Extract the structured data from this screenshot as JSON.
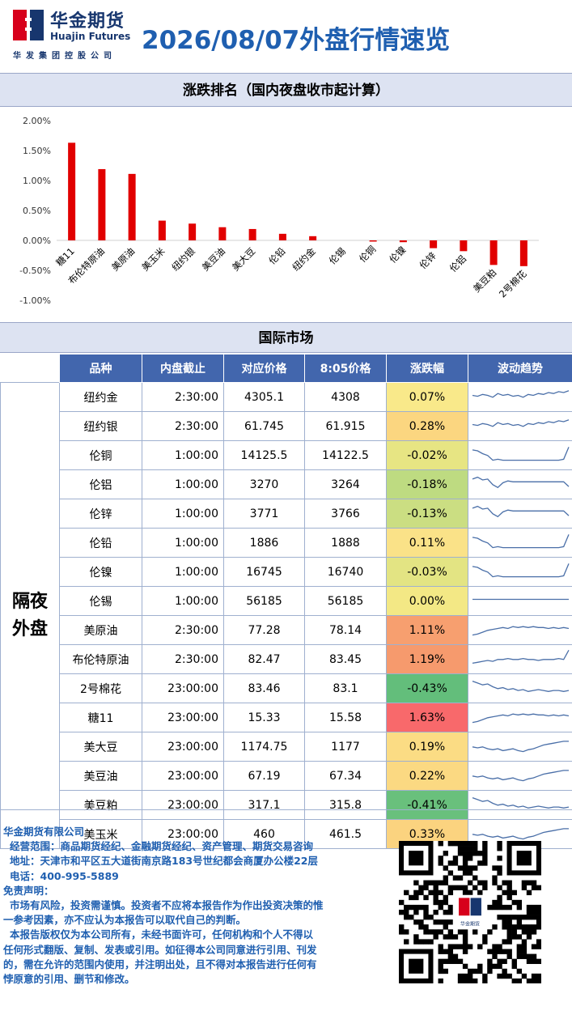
{
  "header": {
    "logo_cn": "华金期货",
    "logo_en": "Huajin Futures",
    "logo_sub": "华发集团控股公司",
    "title": "2026/08/07外盘行情速览"
  },
  "colors": {
    "bar": "#e10000",
    "header_bg": "#4266ad",
    "band_bg": "#dde3f2",
    "brand": "#1f5fb0",
    "logo_red": "#d7001b",
    "logo_blue": "#17366e"
  },
  "chart_section_title": "涨跌排名（国内夜盘收市起计算）",
  "chart_data": {
    "type": "bar",
    "categories": [
      "糖11",
      "布伦特原油",
      "美原油",
      "美玉米",
      "纽约银",
      "美豆油",
      "美大豆",
      "伦铅",
      "纽约金",
      "伦锡",
      "伦铜",
      "伦镍",
      "伦锌",
      "伦铝",
      "美豆粕",
      "2号棉花"
    ],
    "values": [
      1.63,
      1.19,
      1.11,
      0.33,
      0.28,
      0.22,
      0.19,
      0.11,
      0.07,
      0.0,
      -0.02,
      -0.03,
      -0.13,
      -0.18,
      -0.41,
      -0.43
    ],
    "ylim": [
      -1.0,
      2.0
    ],
    "yticks": [
      "2.00%",
      "1.50%",
      "1.00%",
      "0.50%",
      "0.00%",
      "-0.50%",
      "-1.00%"
    ],
    "ytick_values": [
      2.0,
      1.5,
      1.0,
      0.5,
      0.0,
      -0.5,
      -1.0
    ],
    "grid": false,
    "xlabel": "",
    "ylabel": ""
  },
  "intl_section_title": "国际市场",
  "table": {
    "group_label_1": "隔夜",
    "group_label_2": "外盘",
    "headers": [
      "品种",
      "内盘截止",
      "对应价格",
      "8:05价格",
      "涨跌幅",
      "波动趋势"
    ],
    "rows": [
      {
        "name": "纽约金",
        "cutoff": "2:30:00",
        "price": "4305.1",
        "price805": "4308",
        "change": "0.07%",
        "pct": 0.07,
        "color": "#f9e98a",
        "trend": "flat-up"
      },
      {
        "name": "纽约银",
        "cutoff": "2:30:00",
        "price": "61.745",
        "price805": "61.915",
        "change": "0.28%",
        "pct": 0.28,
        "color": "#fbd680",
        "trend": "flat-up"
      },
      {
        "name": "伦铜",
        "cutoff": "1:00:00",
        "price": "14125.5",
        "price805": "14122.5",
        "change": "-0.02%",
        "pct": -0.02,
        "color": "#e7e583",
        "trend": "drop-spike"
      },
      {
        "name": "伦铝",
        "cutoff": "1:00:00",
        "price": "3270",
        "price805": "3264",
        "change": "-0.18%",
        "pct": -0.18,
        "color": "#bedb81",
        "trend": "drop"
      },
      {
        "name": "伦锌",
        "cutoff": "1:00:00",
        "price": "3771",
        "price805": "3766",
        "change": "-0.13%",
        "pct": -0.13,
        "color": "#cbde82",
        "trend": "drop"
      },
      {
        "name": "伦铅",
        "cutoff": "1:00:00",
        "price": "1886",
        "price805": "1888",
        "change": "0.11%",
        "pct": 0.11,
        "color": "#fae288",
        "trend": "drop-spike"
      },
      {
        "name": "伦镍",
        "cutoff": "1:00:00",
        "price": "16745",
        "price805": "16740",
        "change": "-0.03%",
        "pct": -0.03,
        "color": "#e3e483",
        "trend": "drop-spike"
      },
      {
        "name": "伦锡",
        "cutoff": "1:00:00",
        "price": "56185",
        "price805": "56185",
        "change": "0.00%",
        "pct": 0.0,
        "color": "#f3e885",
        "trend": "flat"
      },
      {
        "name": "美原油",
        "cutoff": "2:30:00",
        "price": "77.28",
        "price805": "78.14",
        "change": "1.11%",
        "pct": 1.11,
        "color": "#f79f6f",
        "trend": "up"
      },
      {
        "name": "布伦特原油",
        "cutoff": "2:30:00",
        "price": "82.47",
        "price805": "83.45",
        "change": "1.19%",
        "pct": 1.19,
        "color": "#f69a6d",
        "trend": "up-spike"
      },
      {
        "name": "2号棉花",
        "cutoff": "23:00:00",
        "price": "83.46",
        "price805": "83.1",
        "change": "-0.43%",
        "pct": -0.43,
        "color": "#63be7b",
        "trend": "down"
      },
      {
        "name": "糖11",
        "cutoff": "23:00:00",
        "price": "15.33",
        "price805": "15.58",
        "change": "1.63%",
        "pct": 1.63,
        "color": "#f8696b",
        "trend": "up"
      },
      {
        "name": "美大豆",
        "cutoff": "23:00:00",
        "price": "1174.75",
        "price805": "1177",
        "change": "0.19%",
        "pct": 0.19,
        "color": "#fbdc84",
        "trend": "rise-late"
      },
      {
        "name": "美豆油",
        "cutoff": "23:00:00",
        "price": "67.19",
        "price805": "67.34",
        "change": "0.22%",
        "pct": 0.22,
        "color": "#fbd982",
        "trend": "rise-late"
      },
      {
        "name": "美豆粕",
        "cutoff": "23:00:00",
        "price": "317.1",
        "price805": "315.8",
        "change": "-0.41%",
        "pct": -0.41,
        "color": "#69c07c",
        "trend": "down"
      },
      {
        "name": "美玉米",
        "cutoff": "23:00:00",
        "price": "460",
        "price805": "461.5",
        "change": "0.33%",
        "pct": 0.33,
        "color": "#fbd37f",
        "trend": "rise-late"
      }
    ]
  },
  "footer": {
    "company": "华金期货有限公司",
    "scope": "经营范围：商品期货经纪、金融期货经纪、资产管理、期货交易咨询",
    "address": "地址：天津市和平区五大道街南京路183号世纪都会商厦办公楼22层",
    "phone": "电话：400-995-5889",
    "disclaimer_title": "免责声明：",
    "disclaimer_1a": "市场有风险，投资需谨慎。投资者不应将本报告作为作出投资决策的惟",
    "disclaimer_1b": "一参考因素，亦不应认为本报告可以取代自己的判断。",
    "disclaimer_2a": "本报告版权仅为本公司所有，未经书面许可，任何机构和个人不得以",
    "disclaimer_2b": "任何形式翻版、复制、发表或引用。如征得本公司同意进行引用、刊发",
    "disclaimer_2c": "的，需在允许的范围内使用，并注明出处，且不得对本报告进行任何有",
    "disclaimer_2d": "悖原意的引用、删节和修改。",
    "qr_logo_text": "华金期货"
  }
}
